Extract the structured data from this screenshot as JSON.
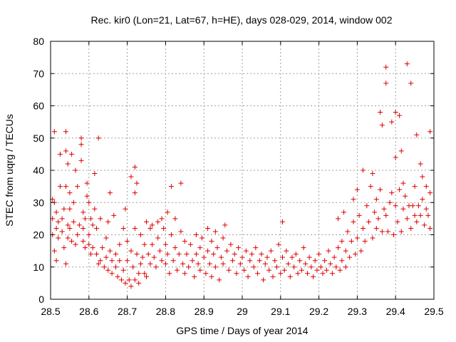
{
  "chart_data": {
    "type": "scatter",
    "title": "Rec. kir0 (Lon=21, Lat=67, h=HE), days 028-029, 2014, window 002",
    "xlabel": "GPS time / Days of year 2014",
    "ylabel": "STEC from uqrg / TECUs",
    "xlim": [
      28.5,
      29.5
    ],
    "ylim": [
      0,
      80
    ],
    "xticks": [
      "28.5",
      "28.6",
      "28.7",
      "28.8",
      "28.9",
      "29",
      "29.1",
      "29.2",
      "29.3",
      "29.4",
      "29.5"
    ],
    "yticks": [
      "0",
      "10",
      "20",
      "30",
      "40",
      "50",
      "60",
      "70",
      "80"
    ],
    "grid": true,
    "marker": "+",
    "color": "#dd0000",
    "series": [
      {
        "points": [
          [
            28.505,
            31
          ],
          [
            28.505,
            25
          ],
          [
            28.505,
            20
          ],
          [
            28.51,
            52
          ],
          [
            28.51,
            30
          ],
          [
            28.51,
            15
          ],
          [
            28.515,
            12
          ],
          [
            28.515,
            22
          ],
          [
            28.515,
            27
          ],
          [
            28.52,
            19
          ],
          [
            28.52,
            24
          ],
          [
            28.525,
            45
          ],
          [
            28.525,
            35
          ],
          [
            28.53,
            25
          ],
          [
            28.53,
            21
          ],
          [
            28.535,
            28
          ],
          [
            28.535,
            16
          ],
          [
            28.54,
            52
          ],
          [
            28.54,
            46
          ],
          [
            28.54,
            35
          ],
          [
            28.54,
            11
          ],
          [
            28.545,
            42
          ],
          [
            28.545,
            23
          ],
          [
            28.545,
            19
          ],
          [
            28.55,
            33
          ],
          [
            28.55,
            28
          ],
          [
            28.55,
            22
          ],
          [
            28.555,
            45
          ],
          [
            28.555,
            18
          ],
          [
            28.56,
            30
          ],
          [
            28.56,
            24
          ],
          [
            28.565,
            40
          ],
          [
            28.565,
            17
          ],
          [
            28.57,
            35
          ],
          [
            28.57,
            20
          ],
          [
            28.575,
            23
          ],
          [
            28.58,
            50
          ],
          [
            28.58,
            48
          ],
          [
            28.58,
            43
          ],
          [
            28.585,
            27
          ],
          [
            28.585,
            22
          ],
          [
            28.585,
            18
          ],
          [
            28.59,
            25
          ],
          [
            28.59,
            16
          ],
          [
            28.595,
            36
          ],
          [
            28.595,
            32
          ],
          [
            28.6,
            30
          ],
          [
            28.6,
            20
          ],
          [
            28.6,
            17
          ],
          [
            28.605,
            25
          ],
          [
            28.605,
            14
          ],
          [
            28.61,
            23
          ],
          [
            28.61,
            16
          ],
          [
            28.615,
            28
          ],
          [
            28.615,
            39
          ],
          [
            28.62,
            22
          ],
          [
            28.62,
            14
          ],
          [
            28.625,
            50
          ],
          [
            28.625,
            11
          ],
          [
            28.63,
            25
          ],
          [
            28.63,
            12
          ],
          [
            28.635,
            16
          ],
          [
            28.64,
            10
          ],
          [
            28.645,
            19
          ],
          [
            28.645,
            13
          ],
          [
            28.65,
            24
          ],
          [
            28.65,
            9
          ],
          [
            28.655,
            33
          ],
          [
            28.655,
            15
          ],
          [
            28.66,
            12
          ],
          [
            28.66,
            8
          ],
          [
            28.665,
            26
          ],
          [
            28.67,
            14
          ],
          [
            28.67,
            10
          ],
          [
            28.675,
            7
          ],
          [
            28.68,
            17
          ],
          [
            28.68,
            12
          ],
          [
            28.685,
            6
          ],
          [
            28.69,
            22
          ],
          [
            28.69,
            9
          ],
          [
            28.695,
            28
          ],
          [
            28.695,
            5
          ],
          [
            28.7,
            18
          ],
          [
            28.7,
            12
          ],
          [
            28.705,
            6
          ],
          [
            28.71,
            38
          ],
          [
            28.71,
            15
          ],
          [
            28.71,
            4
          ],
          [
            28.715,
            10
          ],
          [
            28.72,
            33
          ],
          [
            28.72,
            41
          ],
          [
            28.72,
            22
          ],
          [
            28.72,
            6
          ],
          [
            28.725,
            36
          ],
          [
            28.725,
            14
          ],
          [
            28.73,
            8
          ],
          [
            28.73,
            5
          ],
          [
            28.735,
            20
          ],
          [
            28.735,
            11
          ],
          [
            28.74,
            13
          ],
          [
            28.745,
            17
          ],
          [
            28.745,
            8
          ],
          [
            28.75,
            24
          ],
          [
            28.75,
            7
          ],
          [
            28.755,
            14
          ],
          [
            28.76,
            22
          ],
          [
            28.76,
            11
          ],
          [
            28.765,
            23
          ],
          [
            28.765,
            17
          ],
          [
            28.77,
            13
          ],
          [
            28.775,
            10
          ],
          [
            28.78,
            24
          ],
          [
            28.78,
            19
          ],
          [
            28.785,
            15
          ],
          [
            28.79,
            25
          ],
          [
            28.79,
            12
          ],
          [
            28.795,
            22
          ],
          [
            28.8,
            17
          ],
          [
            28.8,
            11
          ],
          [
            28.805,
            27
          ],
          [
            28.805,
            14
          ],
          [
            28.81,
            8
          ],
          [
            28.815,
            35
          ],
          [
            28.815,
            20
          ],
          [
            28.82,
            12
          ],
          [
            28.825,
            25
          ],
          [
            28.825,
            16
          ],
          [
            28.83,
            9
          ],
          [
            28.835,
            14
          ],
          [
            28.84,
            36
          ],
          [
            28.84,
            21
          ],
          [
            28.845,
            11
          ],
          [
            28.85,
            18
          ],
          [
            28.85,
            8
          ],
          [
            28.855,
            14
          ],
          [
            28.86,
            10
          ],
          [
            28.865,
            17
          ],
          [
            28.87,
            12
          ],
          [
            28.875,
            7
          ],
          [
            28.88,
            20
          ],
          [
            28.88,
            14
          ],
          [
            28.885,
            11
          ],
          [
            28.89,
            16
          ],
          [
            28.89,
            9
          ],
          [
            28.895,
            19
          ],
          [
            28.9,
            13
          ],
          [
            28.905,
            8
          ],
          [
            28.91,
            22
          ],
          [
            28.91,
            15
          ],
          [
            28.915,
            11
          ],
          [
            28.92,
            18
          ],
          [
            28.92,
            7
          ],
          [
            28.925,
            14
          ],
          [
            28.93,
            21
          ],
          [
            28.93,
            10
          ],
          [
            28.935,
            16
          ],
          [
            28.94,
            6
          ],
          [
            28.945,
            13
          ],
          [
            28.95,
            19
          ],
          [
            28.95,
            11
          ],
          [
            28.955,
            23
          ],
          [
            28.96,
            15
          ],
          [
            28.965,
            9
          ],
          [
            28.97,
            17
          ],
          [
            28.975,
            12
          ],
          [
            28.98,
            14
          ],
          [
            28.985,
            8
          ],
          [
            28.99,
            16
          ],
          [
            28.995,
            11
          ],
          [
            29.0,
            13
          ],
          [
            29.005,
            9
          ],
          [
            29.01,
            15
          ],
          [
            29.015,
            7
          ],
          [
            29.02,
            12
          ],
          [
            29.025,
            14
          ],
          [
            29.03,
            10
          ],
          [
            29.035,
            16
          ],
          [
            29.04,
            8
          ],
          [
            29.045,
            12
          ],
          [
            29.05,
            14
          ],
          [
            29.055,
            6
          ],
          [
            29.06,
            11
          ],
          [
            29.065,
            13
          ],
          [
            29.07,
            9
          ],
          [
            29.075,
            15
          ],
          [
            29.08,
            7
          ],
          [
            29.085,
            12
          ],
          [
            29.09,
            10
          ],
          [
            29.095,
            17
          ],
          [
            29.1,
            8
          ],
          [
            29.105,
            24
          ],
          [
            29.105,
            13
          ],
          [
            29.11,
            9
          ],
          [
            29.115,
            15
          ],
          [
            29.12,
            11
          ],
          [
            29.125,
            7
          ],
          [
            29.13,
            13
          ],
          [
            29.135,
            10
          ],
          [
            29.14,
            14
          ],
          [
            29.145,
            8
          ],
          [
            29.15,
            12
          ],
          [
            29.155,
            9
          ],
          [
            29.16,
            16
          ],
          [
            29.165,
            11
          ],
          [
            29.17,
            8
          ],
          [
            29.175,
            13
          ],
          [
            29.18,
            10
          ],
          [
            29.185,
            7
          ],
          [
            29.19,
            12
          ],
          [
            29.195,
            9
          ],
          [
            29.2,
            14
          ],
          [
            29.205,
            10
          ],
          [
            29.21,
            8
          ],
          [
            29.215,
            12
          ],
          [
            29.22,
            9
          ],
          [
            29.225,
            15
          ],
          [
            29.23,
            11
          ],
          [
            29.235,
            8
          ],
          [
            29.24,
            13
          ],
          [
            29.245,
            10
          ],
          [
            29.25,
            25
          ],
          [
            29.25,
            16
          ],
          [
            29.255,
            9
          ],
          [
            29.26,
            18
          ],
          [
            29.26,
            12
          ],
          [
            29.265,
            27
          ],
          [
            29.27,
            15
          ],
          [
            29.27,
            10
          ],
          [
            29.275,
            21
          ],
          [
            29.28,
            13
          ],
          [
            29.285,
            18
          ],
          [
            29.29,
            31
          ],
          [
            29.29,
            24
          ],
          [
            29.295,
            14
          ],
          [
            29.3,
            34
          ],
          [
            29.3,
            19
          ],
          [
            29.305,
            26
          ],
          [
            29.31,
            15
          ],
          [
            29.315,
            40
          ],
          [
            29.315,
            22
          ],
          [
            29.32,
            18
          ],
          [
            29.325,
            29
          ],
          [
            29.33,
            24
          ],
          [
            29.335,
            35
          ],
          [
            29.34,
            39
          ],
          [
            29.34,
            19
          ],
          [
            29.345,
            27
          ],
          [
            29.35,
            31
          ],
          [
            29.35,
            22
          ],
          [
            29.355,
            25
          ],
          [
            29.36,
            58
          ],
          [
            29.36,
            34
          ],
          [
            29.365,
            54
          ],
          [
            29.365,
            21
          ],
          [
            29.37,
            28
          ],
          [
            29.375,
            72
          ],
          [
            29.375,
            67
          ],
          [
            29.375,
            26
          ],
          [
            29.38,
            21
          ],
          [
            29.385,
            30
          ],
          [
            29.39,
            55
          ],
          [
            29.39,
            33
          ],
          [
            29.395,
            20
          ],
          [
            29.4,
            44
          ],
          [
            29.4,
            58
          ],
          [
            29.4,
            29
          ],
          [
            29.405,
            24
          ],
          [
            29.41,
            34
          ],
          [
            29.41,
            57
          ],
          [
            29.415,
            46
          ],
          [
            29.415,
            21
          ],
          [
            29.42,
            36
          ],
          [
            29.42,
            28
          ],
          [
            29.425,
            32
          ],
          [
            29.43,
            73
          ],
          [
            29.43,
            25
          ],
          [
            29.435,
            29
          ],
          [
            29.44,
            67
          ],
          [
            29.44,
            22
          ],
          [
            29.445,
            29
          ],
          [
            29.45,
            35
          ],
          [
            29.45,
            26
          ],
          [
            29.455,
            51
          ],
          [
            29.455,
            24
          ],
          [
            29.46,
            29
          ],
          [
            29.465,
            42
          ],
          [
            29.465,
            26
          ],
          [
            29.47,
            38
          ],
          [
            29.47,
            31
          ],
          [
            29.475,
            23
          ],
          [
            29.48,
            35
          ],
          [
            29.48,
            28
          ],
          [
            29.485,
            26
          ],
          [
            29.49,
            52
          ],
          [
            29.49,
            33
          ],
          [
            29.49,
            22
          ]
        ]
      }
    ]
  }
}
